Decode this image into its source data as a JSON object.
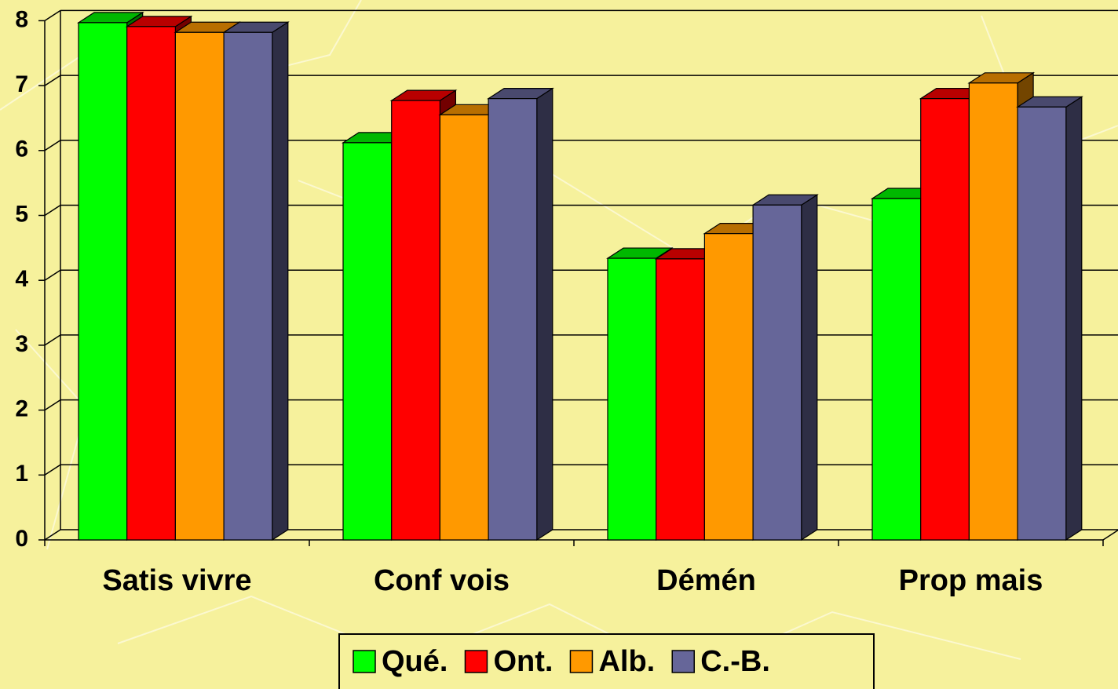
{
  "chart_data": {
    "type": "bar3d",
    "categories": [
      "Satis vivre",
      "Conf vois",
      "Démén",
      "Prop mais"
    ],
    "series": [
      {
        "name": "Qué.",
        "color": "#00ff00",
        "values": [
          7.97,
          6.12,
          4.34,
          5.26
        ]
      },
      {
        "name": "Ont.",
        "color": "#ff0000",
        "values": [
          7.91,
          6.77,
          4.33,
          6.8
        ]
      },
      {
        "name": "Alb.",
        "color": "#ff9900",
        "values": [
          7.82,
          6.55,
          4.72,
          7.04
        ]
      },
      {
        "name": "C.-B.",
        "color": "#666699",
        "values": [
          7.82,
          6.8,
          5.16,
          6.67
        ]
      }
    ],
    "ylim": [
      0,
      8
    ],
    "yticks": [
      0,
      1,
      2,
      3,
      4,
      5,
      6,
      7,
      8
    ],
    "grid": true,
    "legend": "bottom"
  }
}
